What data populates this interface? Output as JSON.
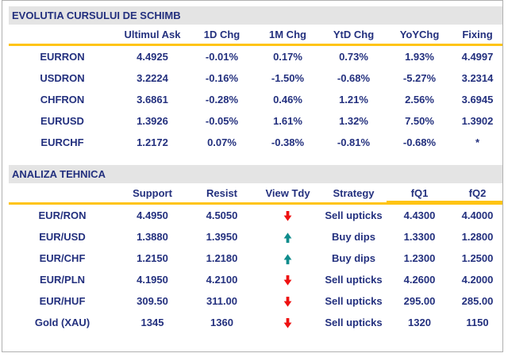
{
  "report": {
    "colors": {
      "accent_yellow": "#FFC414",
      "navy_text": "#23307E",
      "section_bar_gray": "#E4E4E4",
      "frame_border_gray": "#B0B0B0",
      "arrow_down_red": "#EE1111",
      "arrow_up_teal": "#0F8C8C"
    },
    "sections": [
      {
        "id": "exchange",
        "title": "EVOLUTIA CURSULUI DE SCHIMB",
        "columns": [
          "",
          "Ultimul Ask",
          "1D Chg",
          "1M Chg",
          "YtD Chg",
          "YoYChg",
          "Fixing"
        ],
        "rows": [
          [
            "EURRON",
            "4.4925",
            "-0.01%",
            "0.17%",
            "0.73%",
            "1.93%",
            "4.4997"
          ],
          [
            "USDRON",
            "3.2224",
            "-0.16%",
            "-1.50%",
            "-0.68%",
            "-5.27%",
            "3.2314"
          ],
          [
            "CHFRON",
            "3.6861",
            "-0.28%",
            "0.46%",
            "1.21%",
            "2.56%",
            "3.6945"
          ],
          [
            "EURUSD",
            "1.3926",
            "-0.05%",
            "1.61%",
            "1.32%",
            "7.50%",
            "1.3902"
          ],
          [
            "EURCHF",
            "1.2172",
            "0.07%",
            "-0.38%",
            "-0.81%",
            "-0.68%",
            "*"
          ]
        ]
      },
      {
        "id": "technical",
        "title": "ANALIZA TEHNICA",
        "columns": [
          "",
          "Support",
          "Resist",
          "View Tdy",
          "Strategy",
          "fQ1",
          "fQ2"
        ],
        "rows": [
          [
            "EUR/RON",
            "4.4950",
            "4.5050",
            "down-arrow-icon",
            "Sell upticks",
            "4.4300",
            "4.4000"
          ],
          [
            "EUR/USD",
            "1.3880",
            "1.3950",
            "up-arrow-icon",
            "Buy dips",
            "1.3300",
            "1.2800"
          ],
          [
            "EUR/CHF",
            "1.2150",
            "1.2180",
            "up-arrow-icon",
            "Buy dips",
            "1.2300",
            "1.2500"
          ],
          [
            "EUR/PLN",
            "4.1950",
            "4.2100",
            "down-arrow-icon",
            "Sell upticks",
            "4.2600",
            "4.2000"
          ],
          [
            "EUR/HUF",
            "309.50",
            "311.00",
            "down-arrow-icon",
            "Sell upticks",
            "295.00",
            "285.00"
          ],
          [
            "Gold (XAU)",
            "1345",
            "1360",
            "down-arrow-icon",
            "Sell upticks",
            "1320",
            "1150"
          ]
        ]
      }
    ]
  }
}
